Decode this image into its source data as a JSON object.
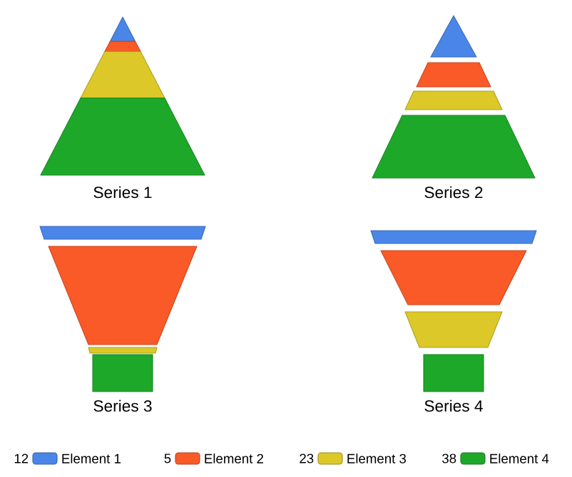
{
  "chart_data": [
    {
      "type": "other",
      "title": "Series 1",
      "categories": [
        "Element 1",
        "Element 2",
        "Element 3",
        "Element 4"
      ],
      "values": [
        12,
        5,
        23,
        38
      ],
      "data_labels": true,
      "colors": [
        "#4a86e8",
        "#fa5a28",
        "#dcc828",
        "#1ea82a"
      ]
    },
    {
      "type": "other",
      "title": "Series 2",
      "colors": [
        "#4a86e8",
        "#fa5a28",
        "#dcc828",
        "#1ea82a"
      ]
    },
    {
      "type": "other",
      "title": "Series 3",
      "colors": [
        "#4a86e8",
        "#fa5a28",
        "#dcc828",
        "#1ea82a"
      ]
    },
    {
      "type": "other",
      "title": "Series 4",
      "colors": [
        "#4a86e8",
        "#fa5a28",
        "#dcc828",
        "#1ea82a"
      ]
    }
  ]
}
